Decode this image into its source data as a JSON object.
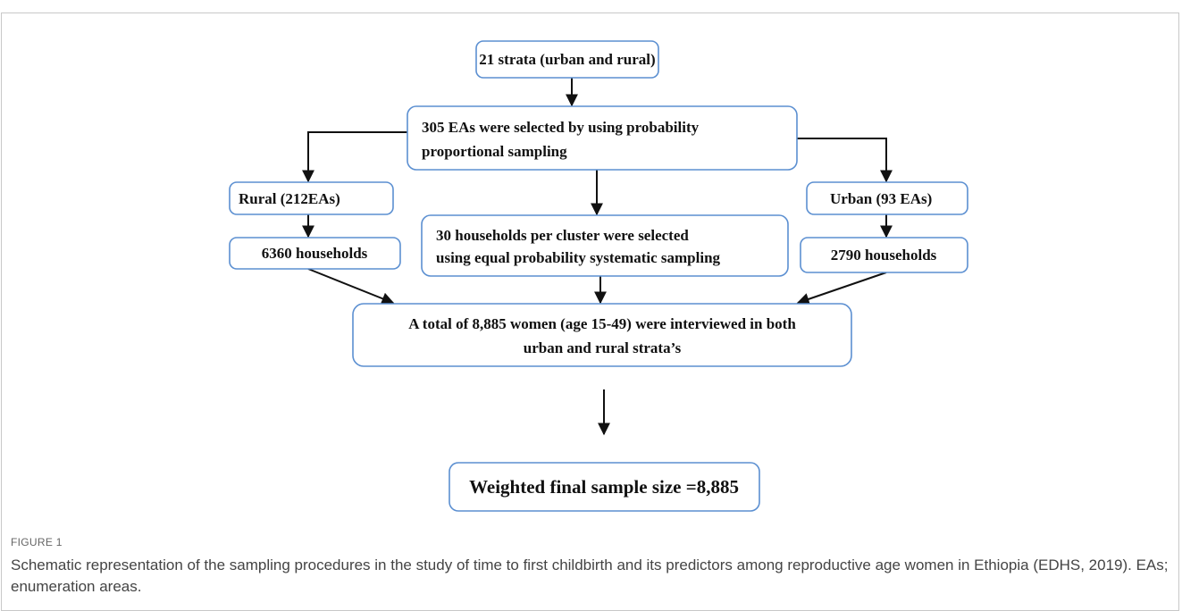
{
  "nodes": [
    {
      "lines": [
        "21 strata (urban and rural)"
      ]
    },
    {
      "lines": [
        "305 EAs were selected by using probability",
        "proportional sampling"
      ]
    },
    {
      "lines": [
        "Rural (212EAs)"
      ]
    },
    {
      "lines": [
        "Urban (93 EAs)"
      ]
    },
    {
      "lines": [
        "30 households per cluster were selected",
        "using equal probability systematic sampling"
      ]
    },
    {
      "lines": [
        "6360 households"
      ]
    },
    {
      "lines": [
        "2790 households"
      ]
    },
    {
      "lines": [
        "A total of 8,885 women (age 15-49) were interviewed in both",
        "urban and rural strata’s"
      ]
    },
    {
      "lines": [
        "Weighted final sample size =8,885"
      ]
    }
  ],
  "caption": {
    "label": "FIGURE 1",
    "text": "Schematic representation of the sampling procedures in the study of time to first childbirth and its predictors among reproductive age women in Ethiopia (EDHS, 2019). EAs; enumeration areas."
  }
}
